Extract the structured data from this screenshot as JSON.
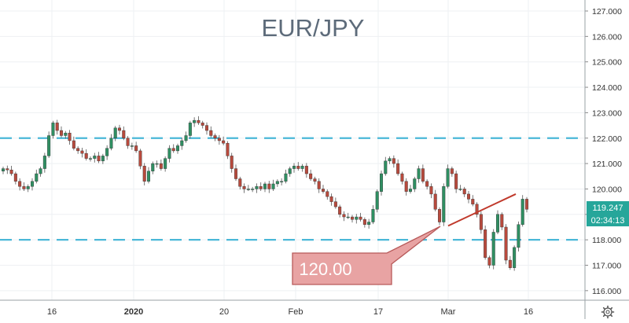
{
  "chart_data": {
    "type": "candlestick",
    "title": "EUR/JPY",
    "ylim": [
      115.8,
      127.4
    ],
    "y_ticks": [
      "127.000",
      "126.000",
      "125.000",
      "124.000",
      "123.000",
      "122.000",
      "121.000",
      "120.000",
      "119.000",
      "118.000",
      "117.000",
      "116.000"
    ],
    "x_ticks": [
      "16",
      "2020",
      "20",
      "Feb",
      "17",
      "Mar",
      "16"
    ],
    "grid": true,
    "last_price": "119.247",
    "countdown": "02:34:13",
    "levels": [
      122.0,
      118.0
    ],
    "annotation": {
      "text": "120.00"
    },
    "trendline": {
      "from": {
        "x": "Mar",
        "y": 118.55
      },
      "to": {
        "x": "16",
        "y": 119.8
      }
    },
    "series_close": [
      120.8,
      120.75,
      120.6,
      120.3,
      120.1,
      120.0,
      120.1,
      120.3,
      120.6,
      120.8,
      121.3,
      122.1,
      122.6,
      122.3,
      122.1,
      122.2,
      121.9,
      121.6,
      121.5,
      121.4,
      121.2,
      121.2,
      121.3,
      121.1,
      121.3,
      121.6,
      122.0,
      122.4,
      122.3,
      122.0,
      121.7,
      121.7,
      121.5,
      120.9,
      120.3,
      120.7,
      121.0,
      121.0,
      120.8,
      121.2,
      121.6,
      121.5,
      121.7,
      121.9,
      122.1,
      122.6,
      122.7,
      122.6,
      122.5,
      122.3,
      122.1,
      122.0,
      121.9,
      121.8,
      121.3,
      120.8,
      120.4,
      120.1,
      120.0,
      120.0,
      120.0,
      120.1,
      120.0,
      120.2,
      120.0,
      120.2,
      120.3,
      120.3,
      120.6,
      120.8,
      120.9,
      120.8,
      120.9,
      120.6,
      120.4,
      120.3,
      120.0,
      119.9,
      119.7,
      119.5,
      119.3,
      119.0,
      118.9,
      118.9,
      118.8,
      118.9,
      118.8,
      118.6,
      118.7,
      119.2,
      119.9,
      120.6,
      121.1,
      121.2,
      121.0,
      120.6,
      120.3,
      119.9,
      120.0,
      120.4,
      120.8,
      120.3,
      120.1,
      119.8,
      119.2,
      118.7,
      120.1,
      120.8,
      120.6,
      120.0,
      120.0,
      119.8,
      119.6,
      119.4,
      119.0,
      118.4,
      117.3,
      117.0,
      118.3,
      119.0,
      118.5,
      117.2,
      116.9,
      117.7,
      118.6,
      119.6,
      119.2
    ]
  }
}
